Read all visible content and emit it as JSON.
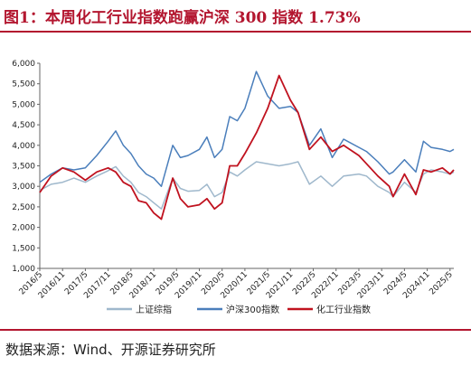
{
  "title": "图1：本周化工行业指数跑赢沪深 300 指数 1.73%",
  "source": "数据来源：Wind、开源证券研究所",
  "chart_data": {
    "type": "line",
    "y_ticks": [
      "6,000",
      "5,500",
      "5,000",
      "4,500",
      "4,000",
      "3,500",
      "3,000",
      "2,500",
      "2,000",
      "1,500",
      "1,000"
    ],
    "ylim": [
      1000,
      6000
    ],
    "x_ticks": [
      "2016/5",
      "2016/11",
      "2017/5",
      "2017/11",
      "2018/5",
      "2018/11",
      "2019/5",
      "2019/11",
      "2020/5",
      "2020/11",
      "2021/5",
      "2021/11",
      "2022/5",
      "2022/11",
      "2023/5",
      "2023/11",
      "2024/5",
      "2024/11",
      "2025/5"
    ],
    "x_range": [
      "2016/5",
      "2025/6"
    ],
    "grid": false,
    "legend_position": "bottom",
    "series": [
      {
        "name": "上证综指",
        "color": "#9fb8cc",
        "x": [
          "2016/5",
          "2016/8",
          "2016/11",
          "2017/2",
          "2017/5",
          "2017/8",
          "2017/11",
          "2018/1",
          "2018/3",
          "2018/5",
          "2018/7",
          "2018/9",
          "2018/11",
          "2019/1",
          "2019/4",
          "2019/6",
          "2019/8",
          "2019/11",
          "2020/1",
          "2020/3",
          "2020/5",
          "2020/7",
          "2020/9",
          "2020/11",
          "2021/2",
          "2021/5",
          "2021/8",
          "2021/11",
          "2022/1",
          "2022/4",
          "2022/7",
          "2022/10",
          "2023/1",
          "2023/5",
          "2023/7",
          "2023/10",
          "2024/1",
          "2024/2",
          "2024/5",
          "2024/8",
          "2024/10",
          "2024/12",
          "2025/3",
          "2025/5",
          "2025/6"
        ],
        "values": [
          2900,
          3050,
          3100,
          3200,
          3100,
          3250,
          3380,
          3480,
          3250,
          3100,
          2850,
          2750,
          2600,
          2450,
          3200,
          2950,
          2880,
          2900,
          3050,
          2750,
          2850,
          3350,
          3250,
          3400,
          3600,
          3550,
          3500,
          3550,
          3600,
          3050,
          3250,
          3000,
          3250,
          3300,
          3250,
          3000,
          2850,
          2750,
          3100,
          2850,
          3300,
          3400,
          3350,
          3300,
          3350
        ]
      },
      {
        "name": "沪深300指数",
        "color": "#4a7ebb",
        "x": [
          "2016/5",
          "2016/8",
          "2016/11",
          "2017/2",
          "2017/5",
          "2017/8",
          "2017/11",
          "2018/1",
          "2018/3",
          "2018/5",
          "2018/7",
          "2018/9",
          "2018/11",
          "2019/1",
          "2019/4",
          "2019/6",
          "2019/8",
          "2019/11",
          "2020/1",
          "2020/3",
          "2020/5",
          "2020/7",
          "2020/9",
          "2020/11",
          "2021/2",
          "2021/5",
          "2021/8",
          "2021/11",
          "2022/1",
          "2022/4",
          "2022/7",
          "2022/10",
          "2023/1",
          "2023/5",
          "2023/7",
          "2023/10",
          "2024/1",
          "2024/2",
          "2024/5",
          "2024/8",
          "2024/10",
          "2024/12",
          "2025/3",
          "2025/5",
          "2025/6"
        ],
        "values": [
          3100,
          3300,
          3450,
          3400,
          3450,
          3750,
          4100,
          4350,
          4000,
          3800,
          3500,
          3300,
          3200,
          3000,
          4000,
          3700,
          3750,
          3900,
          4200,
          3700,
          3900,
          4700,
          4600,
          4900,
          5800,
          5200,
          4900,
          4950,
          4800,
          4000,
          4400,
          3700,
          4150,
          3950,
          3850,
          3600,
          3300,
          3350,
          3650,
          3350,
          4100,
          3950,
          3900,
          3850,
          3900
        ]
      },
      {
        "name": "化工行业指数",
        "color": "#c0121f",
        "x": [
          "2016/5",
          "2016/8",
          "2016/11",
          "2017/2",
          "2017/5",
          "2017/8",
          "2017/11",
          "2018/1",
          "2018/3",
          "2018/5",
          "2018/7",
          "2018/9",
          "2018/11",
          "2019/1",
          "2019/4",
          "2019/6",
          "2019/8",
          "2019/11",
          "2020/1",
          "2020/3",
          "2020/5",
          "2020/7",
          "2020/9",
          "2020/11",
          "2021/2",
          "2021/5",
          "2021/8",
          "2021/11",
          "2022/1",
          "2022/4",
          "2022/7",
          "2022/10",
          "2023/1",
          "2023/5",
          "2023/7",
          "2023/10",
          "2024/1",
          "2024/2",
          "2024/5",
          "2024/8",
          "2024/10",
          "2024/12",
          "2025/3",
          "2025/5",
          "2025/6"
        ],
        "values": [
          2850,
          3250,
          3450,
          3350,
          3150,
          3350,
          3450,
          3350,
          3100,
          3000,
          2650,
          2600,
          2350,
          2200,
          3200,
          2700,
          2500,
          2550,
          2700,
          2450,
          2600,
          3500,
          3500,
          3800,
          4300,
          4900,
          5700,
          5100,
          4800,
          3900,
          4200,
          3850,
          4000,
          3750,
          3550,
          3250,
          3000,
          2750,
          3300,
          2800,
          3400,
          3350,
          3450,
          3300,
          3400
        ]
      }
    ]
  }
}
